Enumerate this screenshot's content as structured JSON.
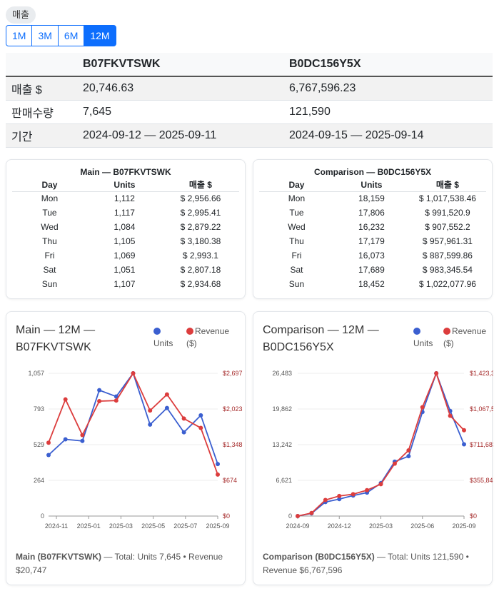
{
  "badge": "매출",
  "ranges": [
    "1M",
    "3M",
    "6M",
    "12M"
  ],
  "active_range": "12M",
  "summary": {
    "headers": [
      "",
      "B07FKVTSWK",
      "B0DC156Y5X"
    ],
    "rows": [
      [
        "매출 $",
        "20,746.63",
        "6,767,596.23"
      ],
      [
        "판매수량",
        "7,645",
        "121,590"
      ],
      [
        "기간",
        "2024-09-12 — 2025-09-11",
        "2024-09-15 — 2025-09-14"
      ]
    ]
  },
  "dow": [
    {
      "title": "Main — B07FKVTSWK",
      "headers": [
        "Day",
        "Units",
        "매출 $"
      ],
      "rows": [
        [
          "Mon",
          "1,112",
          "$ 2,956.66"
        ],
        [
          "Tue",
          "1,117",
          "$ 2,995.41"
        ],
        [
          "Wed",
          "1,084",
          "$ 2,879.22"
        ],
        [
          "Thu",
          "1,105",
          "$ 3,180.38"
        ],
        [
          "Fri",
          "1,069",
          "$ 2,993.1"
        ],
        [
          "Sat",
          "1,051",
          "$ 2,807.18"
        ],
        [
          "Sun",
          "1,107",
          "$ 2,934.68"
        ]
      ]
    },
    {
      "title": "Comparison — B0DC156Y5X",
      "headers": [
        "Day",
        "Units",
        "매출 $"
      ],
      "rows": [
        [
          "Mon",
          "18,159",
          "$ 1,017,538.46"
        ],
        [
          "Tue",
          "17,806",
          "$ 991,520.9"
        ],
        [
          "Wed",
          "16,232",
          "$ 907,552.2"
        ],
        [
          "Thu",
          "17,179",
          "$ 957,961.31"
        ],
        [
          "Fri",
          "16,073",
          "$ 887,599.86"
        ],
        [
          "Sat",
          "17,689",
          "$ 983,345.54"
        ],
        [
          "Sun",
          "18,452",
          "$ 1,022,077.96"
        ]
      ]
    }
  ],
  "colors": {
    "units": "#3b5fd0",
    "revenue": "#dc3d3d",
    "accent": "#0d6efd"
  },
  "chart_data": [
    {
      "type": "line",
      "title": "Main — 12M — B07FKVTSWK",
      "legend": {
        "placement": "top-right",
        "units": "Units",
        "revenue": "Revenue ($)"
      },
      "x_ticks": [
        "2024-11",
        "2025-01",
        "2025-03",
        "2025-05",
        "2025-07",
        "2025-09"
      ],
      "y_left_ticks": [
        "0",
        "264",
        "529",
        "793",
        "1,057"
      ],
      "y_right_ticks": [
        "$0",
        "$674",
        "$1,348",
        "$2,023",
        "$2,697"
      ],
      "y_left_max": 1057,
      "y_right_max": 2697,
      "series": [
        {
          "name": "Units",
          "axis": "left",
          "values": [
            452,
            568,
            556,
            932,
            885,
            1057,
            677,
            800,
            620,
            746,
            385
          ]
        },
        {
          "name": "Revenue ($)",
          "axis": "right",
          "values": [
            1385,
            2204,
            1530,
            2171,
            2182,
            2697,
            1994,
            2297,
            1842,
            1665,
            784
          ]
        }
      ],
      "footer_label": "Main (B07FKVTSWK)",
      "footer_text": " — Total: Units 7,645 • Revenue $20,747"
    },
    {
      "type": "line",
      "title": "Comparison — 12M — B0DC156Y5X",
      "legend": {
        "placement": "top-right",
        "units": "Units",
        "revenue": "Revenue ($)"
      },
      "x_ticks": [
        "2024-09",
        "2024-12",
        "2025-03",
        "2025-06",
        "2025-09"
      ],
      "y_left_ticks": [
        "0",
        "6,621",
        "13,242",
        "19,862",
        "26,483"
      ],
      "y_right_ticks": [
        "$0",
        "$355,841",
        "$711,683",
        "$1,067,524",
        "$1,423,366"
      ],
      "y_left_max": 26483,
      "y_right_max": 1423366,
      "series": [
        {
          "name": "Units",
          "axis": "left",
          "values": [
            0,
            500,
            2600,
            3150,
            3800,
            4350,
            6100,
            10100,
            11100,
            19300,
            26483,
            19500,
            13300
          ]
        },
        {
          "name": "Revenue ($)",
          "axis": "right",
          "values": [
            0,
            30000,
            160000,
            200000,
            218000,
            258000,
            318000,
            522000,
            655000,
            1085000,
            1423366,
            1000000,
            856000
          ]
        }
      ],
      "footer_label": "Comparison (B0DC156Y5X)",
      "footer_text": " — Total: Units 121,590 • Revenue $6,767,596"
    }
  ]
}
